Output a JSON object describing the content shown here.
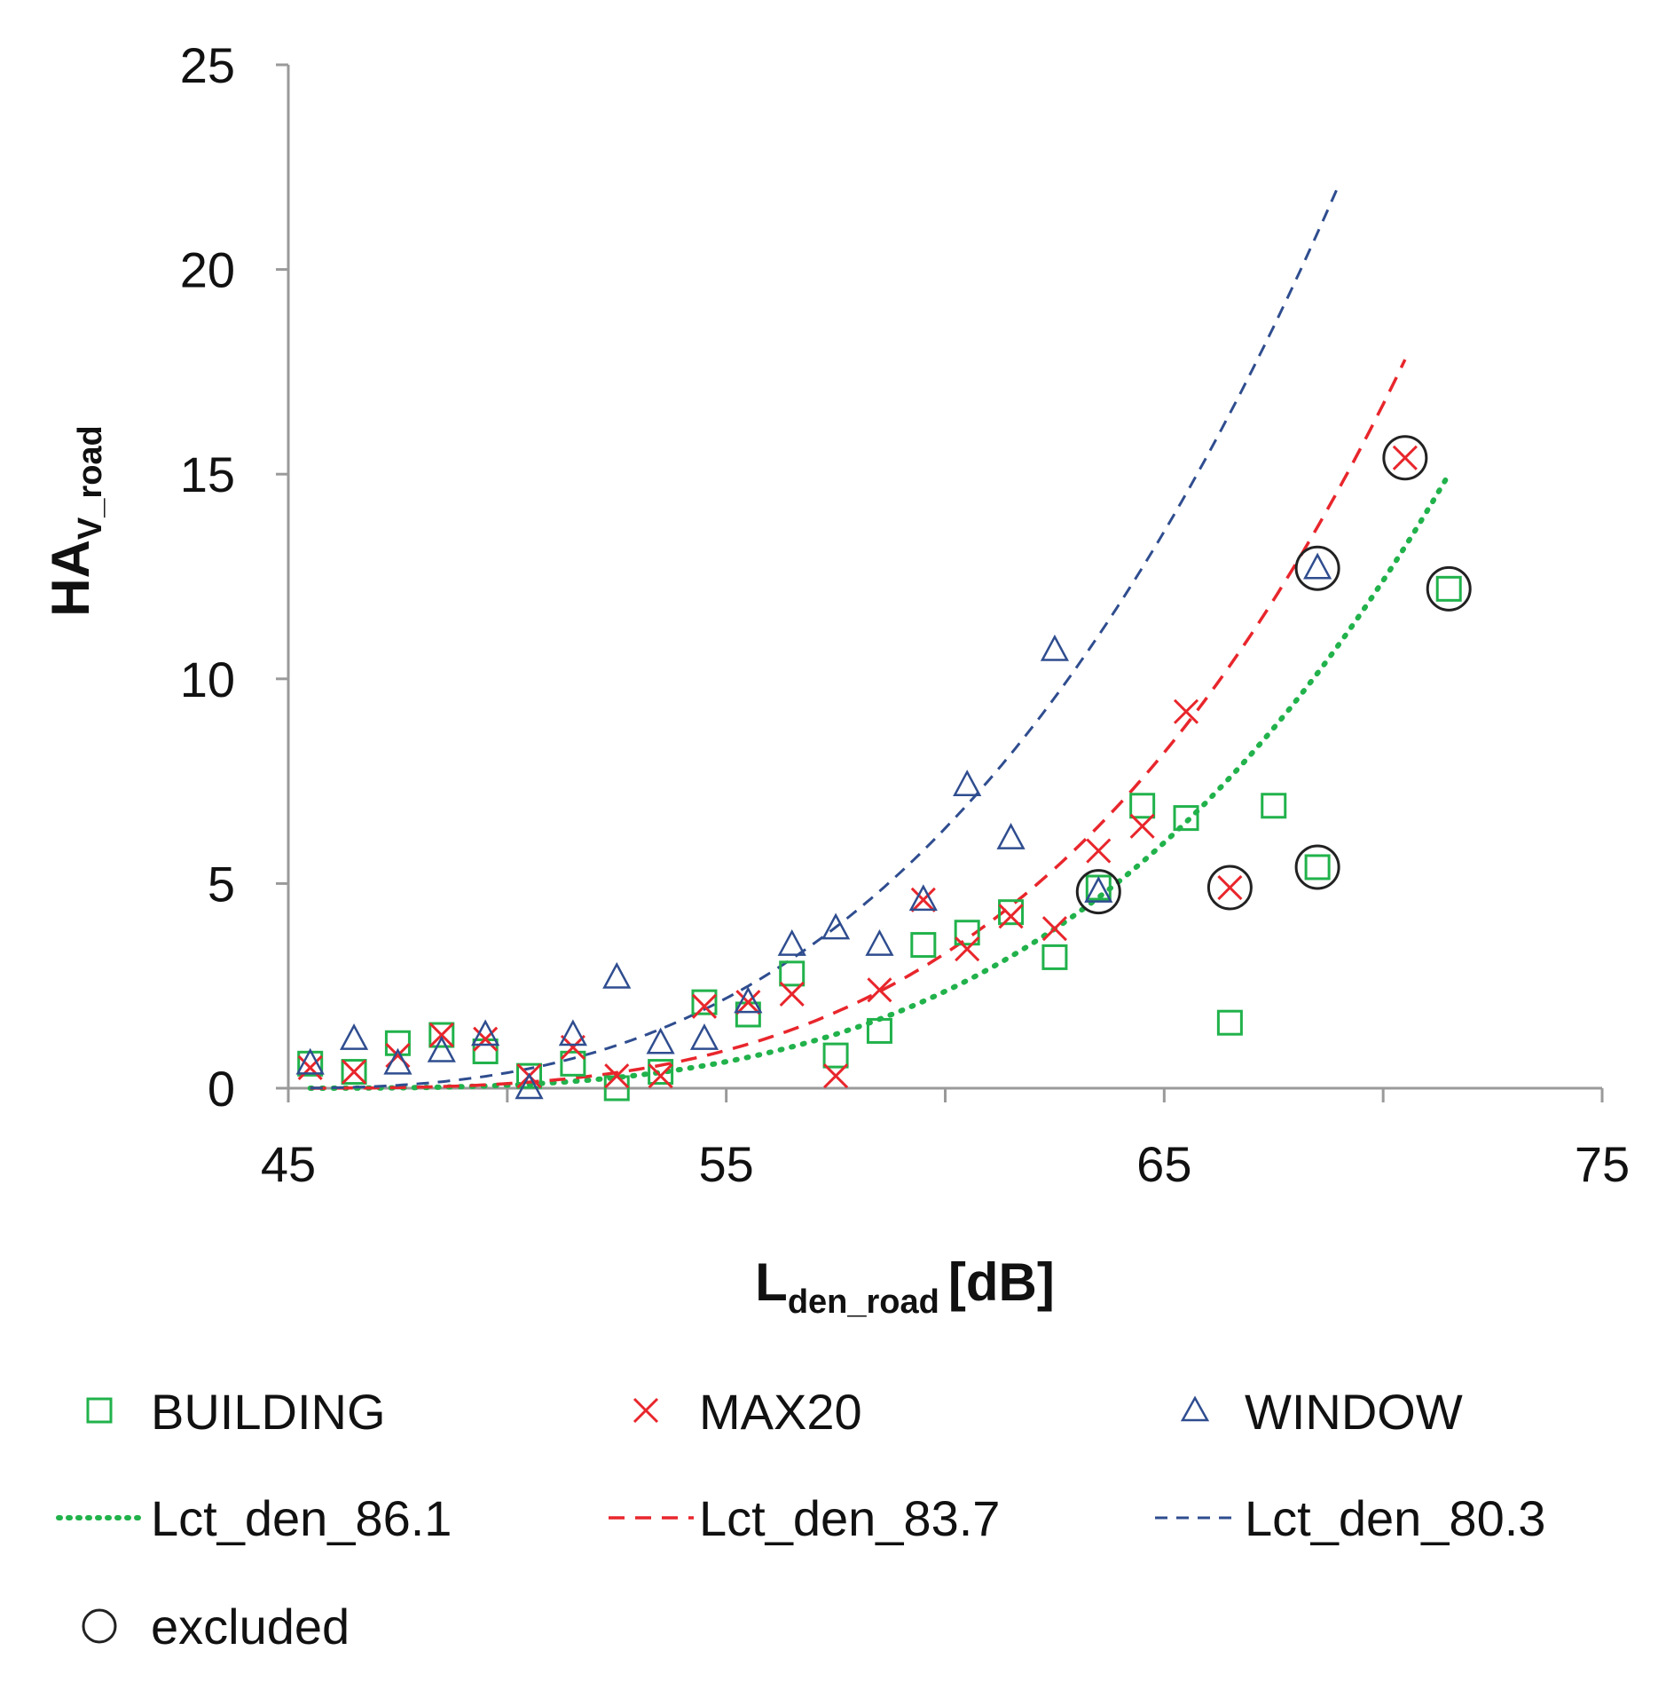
{
  "chart_data": {
    "type": "scatter",
    "ylabel_main": "HA",
    "ylabel_sub": "V_road",
    "xlabel_main": "L",
    "xlabel_sub": "den_road",
    "xlabel_unit": "[dB]",
    "xlim": [
      45,
      75
    ],
    "ylim": [
      0,
      25
    ],
    "xticks": [
      "45",
      "55",
      "65",
      "75"
    ],
    "yticks": [
      "0",
      "5",
      "10",
      "15",
      "20",
      "25"
    ],
    "colors": {
      "building": "#21b24b",
      "max20": "#e8262c",
      "window": "#2f4d8f",
      "excluded": "#222222",
      "axis": "#9a9a9a"
    },
    "series": [
      {
        "name": "BUILDING",
        "marker": "square",
        "points": [
          [
            45.5,
            0.6
          ],
          [
            46.5,
            0.4
          ],
          [
            47.5,
            1.1
          ],
          [
            48.5,
            1.3
          ],
          [
            49.5,
            0.9
          ],
          [
            50.5,
            0.3
          ],
          [
            51.5,
            0.6
          ],
          [
            52.5,
            0.0
          ],
          [
            53.5,
            0.4
          ],
          [
            54.5,
            2.1
          ],
          [
            55.5,
            1.8
          ],
          [
            56.5,
            2.8
          ],
          [
            57.5,
            0.8
          ],
          [
            58.5,
            1.4
          ],
          [
            59.5,
            3.5
          ],
          [
            60.5,
            3.8
          ],
          [
            61.5,
            4.3
          ],
          [
            62.5,
            3.2
          ],
          [
            63.5,
            4.9
          ],
          [
            64.5,
            6.9
          ],
          [
            65.5,
            6.6
          ],
          [
            66.5,
            1.6
          ],
          [
            67.5,
            6.9
          ],
          [
            68.5,
            5.4
          ],
          [
            71.5,
            12.2
          ]
        ]
      },
      {
        "name": "MAX20",
        "marker": "x",
        "points": [
          [
            45.5,
            0.5
          ],
          [
            46.5,
            0.4
          ],
          [
            47.5,
            0.8
          ],
          [
            48.5,
            1.3
          ],
          [
            49.5,
            1.2
          ],
          [
            50.5,
            0.3
          ],
          [
            51.5,
            1.0
          ],
          [
            52.5,
            0.3
          ],
          [
            53.5,
            0.3
          ],
          [
            54.5,
            2.0
          ],
          [
            55.5,
            2.1
          ],
          [
            56.5,
            2.3
          ],
          [
            57.5,
            0.3
          ],
          [
            58.5,
            2.4
          ],
          [
            59.5,
            4.6
          ],
          [
            60.5,
            3.4
          ],
          [
            61.5,
            4.2
          ],
          [
            62.5,
            3.9
          ],
          [
            63.5,
            5.8
          ],
          [
            64.5,
            6.4
          ],
          [
            65.5,
            9.2
          ],
          [
            66.5,
            4.9
          ],
          [
            70.5,
            15.4
          ]
        ]
      },
      {
        "name": "WINDOW",
        "marker": "triangle",
        "points": [
          [
            45.5,
            0.6
          ],
          [
            46.5,
            1.2
          ],
          [
            47.5,
            0.6
          ],
          [
            48.5,
            0.9
          ],
          [
            49.5,
            1.3
          ],
          [
            50.5,
            0.0
          ],
          [
            51.5,
            1.3
          ],
          [
            52.5,
            2.7
          ],
          [
            53.5,
            1.1
          ],
          [
            54.5,
            1.2
          ],
          [
            55.5,
            2.1
          ],
          [
            56.5,
            3.5
          ],
          [
            57.5,
            3.9
          ],
          [
            58.5,
            3.5
          ],
          [
            59.5,
            4.6
          ],
          [
            60.5,
            7.4
          ],
          [
            61.5,
            6.1
          ],
          [
            62.5,
            10.7
          ],
          [
            63.5,
            4.8
          ],
          [
            68.5,
            12.7
          ]
        ]
      }
    ],
    "curves": [
      {
        "name": "Lct_den_86.1",
        "style": "dotted",
        "color_key": "building",
        "x_start": 45.5,
        "x_end": 71.5,
        "y_at_65": 6.0,
        "y_at_71_5": 15.0
      },
      {
        "name": "Lct_den_83.7",
        "style": "dashed",
        "color_key": "max20",
        "x_start": 45.5,
        "x_end": 70.5,
        "y_at_65": 8.2,
        "y_at_70_5": 17.8
      },
      {
        "name": "Lct_den_80.3",
        "style": "dashed",
        "color_key": "window",
        "x_start": 45.5,
        "x_end": 69.0,
        "y_at_65": 13.6,
        "y_at_69": 22.1
      }
    ],
    "excluded": [
      {
        "series": "BUILDING",
        "x": 71.5,
        "y": 12.2
      },
      {
        "series": "BUILDING",
        "x": 68.5,
        "y": 5.4
      },
      {
        "series": "MAX20",
        "x": 70.5,
        "y": 15.4
      },
      {
        "series": "MAX20",
        "x": 66.5,
        "y": 4.9
      },
      {
        "series": "WINDOW",
        "x": 68.5,
        "y": 12.7
      },
      {
        "series": "WINDOW",
        "x": 63.5,
        "y": 4.8
      }
    ],
    "legend": {
      "building": "BUILDING",
      "max20": "MAX20",
      "window": "WINDOW",
      "curve_86": "Lct_den_86.1",
      "curve_83": "Lct_den_83.7",
      "curve_80": "Lct_den_80.3",
      "excluded": "excluded"
    }
  }
}
